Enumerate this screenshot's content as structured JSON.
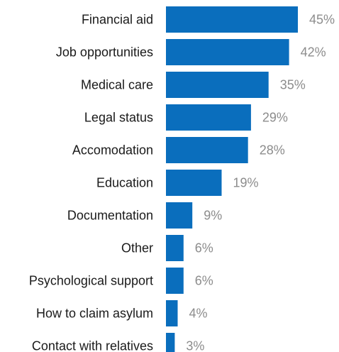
{
  "chart_data": {
    "type": "bar",
    "orientation": "horizontal",
    "categories": [
      "Financial aid",
      "Job opportunities",
      "Medical care",
      "Legal status",
      "Accomodation",
      "Education",
      "Documentation",
      "Other",
      "Psychological support",
      "How to claim asylum",
      "Contact with relatives"
    ],
    "values": [
      45,
      42,
      35,
      29,
      28,
      19,
      9,
      6,
      6,
      4,
      3
    ],
    "value_labels": [
      "45%",
      "42%",
      "35%",
      "29%",
      "28%",
      "19%",
      "9%",
      "6%",
      "6%",
      "4%",
      "3%"
    ],
    "unit": "%",
    "xlim": [
      0,
      45
    ],
    "grid": false,
    "legend": "none",
    "bar_color": "#0a6ebd",
    "value_label_color": "#8c8c8c",
    "category_label_color": "#1a1a1a"
  }
}
